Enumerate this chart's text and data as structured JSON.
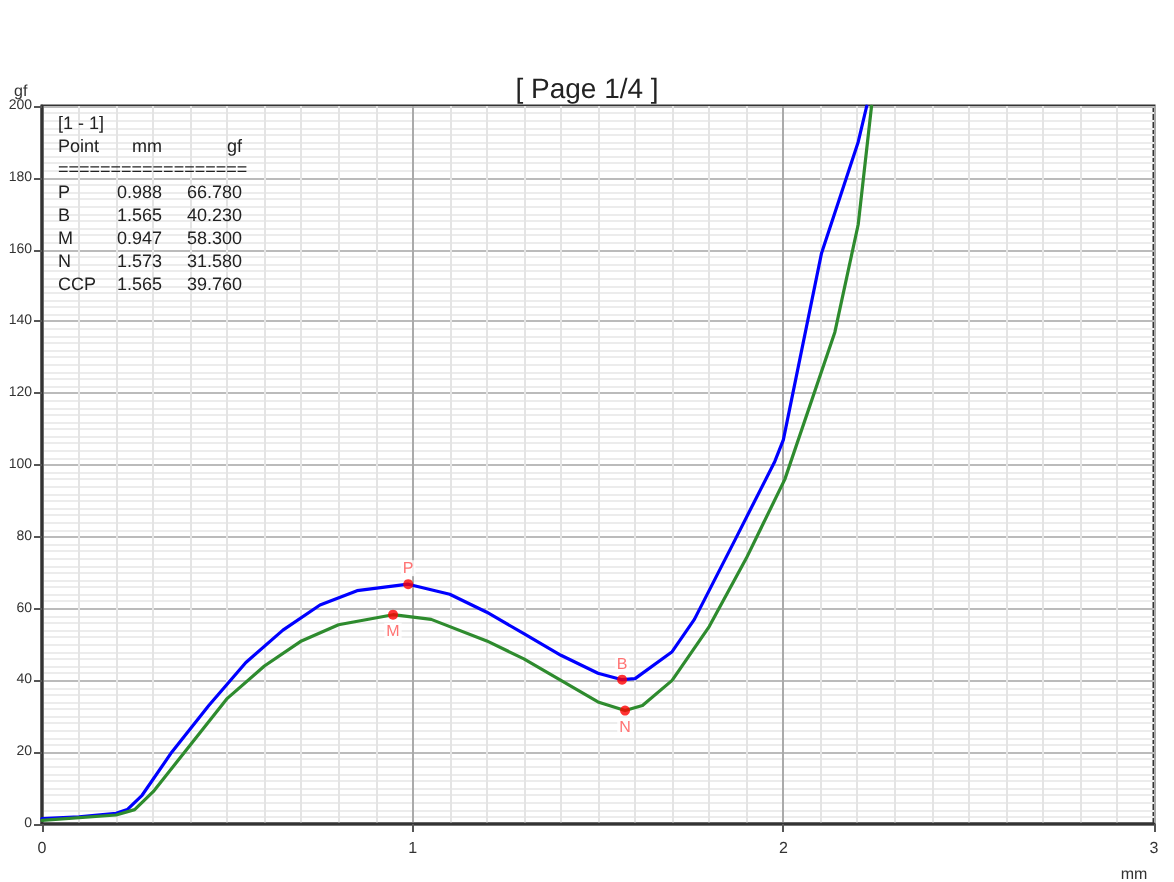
{
  "chart_data": {
    "type": "line",
    "title": "[ Page 1/4 ]",
    "xlabel": "mm",
    "ylabel": "gf",
    "xlim": [
      0,
      3
    ],
    "xticks": [
      0,
      1,
      2,
      3
    ],
    "ylim": [
      0,
      200
    ],
    "yticks": [
      0,
      20,
      40,
      60,
      80,
      100,
      120,
      140,
      160,
      180,
      200
    ],
    "grid": true,
    "marker": "none",
    "line_style": "solid",
    "series": [
      {
        "color": "#0000ff",
        "x": [
          0,
          0.1,
          0.2,
          0.23,
          0.27,
          0.35,
          0.45,
          0.55,
          0.65,
          0.75,
          0.85,
          0.988,
          1.1,
          1.2,
          1.3,
          1.4,
          1.5,
          1.565,
          1.6,
          1.7,
          1.76,
          1.869,
          1.977,
          2.0,
          2.103,
          2.202,
          2.225
        ],
        "values": [
          1.5,
          2,
          3,
          4,
          8,
          20,
          33,
          45,
          54,
          61,
          65,
          66.8,
          64,
          59,
          53,
          47,
          42,
          40.2,
          40.5,
          48,
          57,
          79,
          101,
          107,
          159,
          190,
          200
        ]
      },
      {
        "color": "#2e8b2e",
        "x": [
          0,
          0.2,
          0.25,
          0.3,
          0.4,
          0.5,
          0.6,
          0.7,
          0.8,
          0.947,
          1.05,
          1.2,
          1.3,
          1.4,
          1.5,
          1.573,
          1.62,
          1.7,
          1.8,
          1.9,
          2.004,
          2.139,
          2.202,
          2.238
        ],
        "values": [
          1,
          2.5,
          4,
          9,
          22,
          35,
          44,
          51,
          55.5,
          58.3,
          57,
          51,
          46,
          40,
          34,
          31.6,
          33,
          40,
          55,
          74,
          96,
          137,
          167,
          200
        ]
      },
      {
        "type": "scatter",
        "marker": "circle",
        "color": "#ff0000",
        "x": [
          0.988,
          1.565,
          0.947,
          1.573
        ],
        "values": [
          66.8,
          40.2,
          58.3,
          31.6
        ]
      }
    ],
    "annotations": [
      {
        "text": "P",
        "x": 0.988,
        "y": 66.8
      },
      {
        "text": "B",
        "x": 1.565,
        "y": 40.2
      },
      {
        "text": "M",
        "x": 0.947,
        "y": 58.3
      },
      {
        "text": "N",
        "x": 1.573,
        "y": 31.6
      },
      "[1 - 1]",
      "Point\tmm\tgf",
      "==================",
      "P\t0.988\t66.780",
      "B\t1.565\t40.230",
      "M\t0.947\t58.300",
      "N\t1.573\t31.580",
      "CCP\t1.565\t39.760"
    ]
  }
}
